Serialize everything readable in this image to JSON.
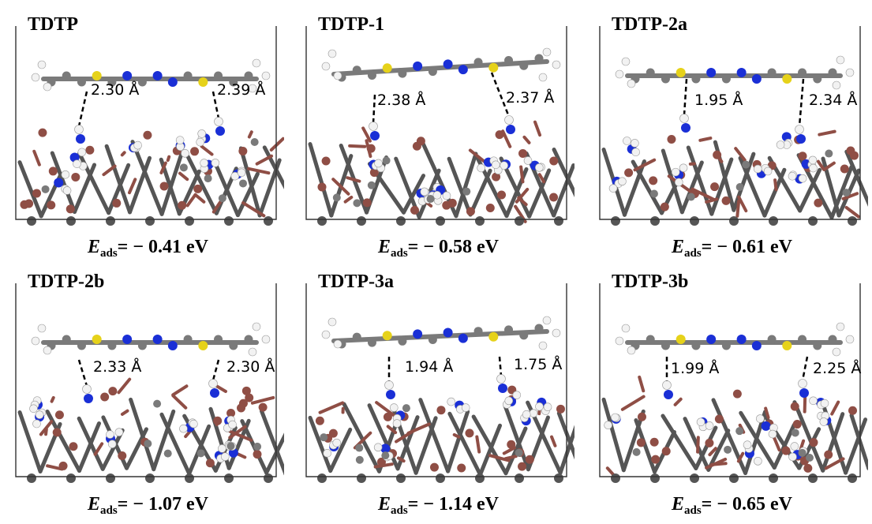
{
  "panels": [
    {
      "title": "TDTP",
      "d1": "2.30 Å",
      "d2": "2.39 Å",
      "energy_prefix": "E",
      "energy_sub": "ads",
      "energy_value": "= − 0.41 eV"
    },
    {
      "title": "TDTP-1",
      "d1": "2.38 Å",
      "d2": "2.37 Å",
      "energy_prefix": "E",
      "energy_sub": "ads",
      "energy_value": "= − 0.58 eV"
    },
    {
      "title": "TDTP-2a",
      "d1": "1.95 Å",
      "d2": "2.34 Å",
      "energy_prefix": "E",
      "energy_sub": "ads",
      "energy_value": "= − 0.61 eV"
    },
    {
      "title": "TDTP-2b",
      "d1": "2.33 Å",
      "d2": "2.30 Å",
      "energy_prefix": "E",
      "energy_sub": "ads",
      "energy_value": "= − 1.07 eV"
    },
    {
      "title": "TDTP-3a",
      "d1": "1.94 Å",
      "d2": "1.75 Å",
      "energy_prefix": "E",
      "energy_sub": "ads",
      "energy_value": "= − 1.14 eV"
    },
    {
      "title": "TDTP-3b",
      "d1": "1.99 Å",
      "d2": "2.25 Å",
      "energy_prefix": "E",
      "energy_sub": "ads",
      "energy_value": "= − 0.65 eV"
    }
  ],
  "colors": {
    "carbon": "#7a7a7a",
    "nitrogen": "#1a2fd6",
    "sulfur": "#e6d21a",
    "hydrogen": "#f2f2f2",
    "oxygen": "#8f4e45",
    "metal": "#555555",
    "cell_line": "#333333"
  }
}
